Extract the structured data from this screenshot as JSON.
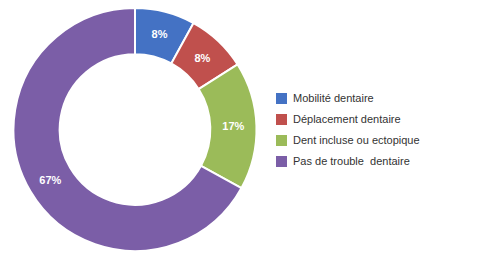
{
  "chart_data": {
    "type": "pie",
    "categories": [
      "Mobilité dentaire",
      "Déplacement dentaire",
      "Dent incluse ou ectopique",
      "Pas de trouble  dentaire"
    ],
    "values": [
      8,
      8,
      17,
      67
    ],
    "value_labels": [
      "8%",
      "8%",
      "17%",
      "67%"
    ],
    "colors": [
      "#4472C4",
      "#C0504D",
      "#9BBB59",
      "#7B5EA7"
    ],
    "data_labels": true,
    "legend": "right"
  }
}
